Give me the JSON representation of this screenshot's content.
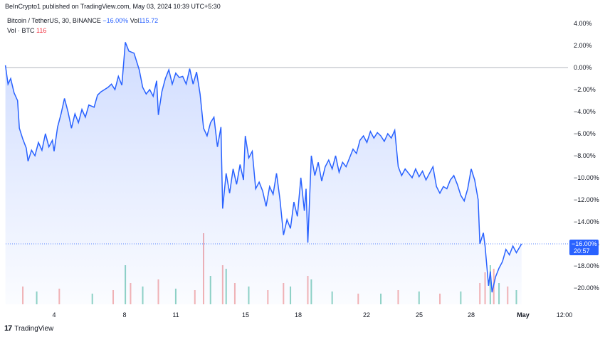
{
  "header": {
    "published": "BeInCrypto1 published on TradingView.com, May 03, 2024 10:39 UTC+5:30"
  },
  "legend": {
    "symbol": "Bitcoin / TetherUS, 30, BINANCE",
    "change": "−16.00%",
    "vol_label": "Vol",
    "vol_value": "115.72",
    "vol_series": "Vol · BTC",
    "vol_series_value": "116"
  },
  "brand": {
    "logo": "17",
    "name": "TradingView"
  },
  "price_badge": {
    "value": "−16.00%",
    "countdown": "20:57"
  },
  "colors": {
    "line": "#2962ff",
    "area_top": "rgba(41,98,255,0.22)",
    "area_bottom": "rgba(41,98,255,0.02)",
    "vol_up": "#8fd3c4",
    "vol_down": "#f5b3b3",
    "zero_line": "#b2b5be",
    "badge": "#2962ff"
  },
  "chart_data": {
    "type": "area",
    "ylim": [
      -22,
      4.8
    ],
    "y_unit": "%",
    "y_ticks": [
      "4.00%",
      "2.00%",
      "0.00%",
      "−2.00%",
      "−4.00%",
      "−6.00%",
      "−8.00%",
      "−10.00%",
      "−12.00%",
      "−14.00%",
      "−16.00%",
      "−18.00%",
      "−20.00%"
    ],
    "y_tick_values": [
      4,
      2,
      0,
      -2,
      -4,
      -6,
      -8,
      -10,
      -12,
      -14,
      -16,
      -18,
      -20
    ],
    "x_ticks": [
      "4",
      "8",
      "11",
      "15",
      "18",
      "22",
      "25",
      "28",
      "May",
      "12:00"
    ],
    "x_tick_days": [
      4,
      8,
      11,
      15,
      18,
      22,
      25,
      28,
      31,
      31.5
    ],
    "x_range_days": [
      1.2,
      31.6
    ],
    "series": [
      {
        "values": [
          [
            1.2,
            0.2
          ],
          [
            1.35,
            -1.5
          ],
          [
            1.5,
            -1.0
          ],
          [
            1.7,
            -2.3
          ],
          [
            1.9,
            -3.0
          ],
          [
            2.0,
            -5.5
          ],
          [
            2.2,
            -6.5
          ],
          [
            2.4,
            -7.3
          ],
          [
            2.5,
            -8.5
          ],
          [
            2.7,
            -7.5
          ],
          [
            2.9,
            -8.0
          ],
          [
            3.1,
            -6.8
          ],
          [
            3.3,
            -7.5
          ],
          [
            3.5,
            -6.0
          ],
          [
            3.7,
            -7.2
          ],
          [
            3.9,
            -6.6
          ],
          [
            4.0,
            -7.6
          ],
          [
            4.2,
            -5.4
          ],
          [
            4.4,
            -4.2
          ],
          [
            4.6,
            -2.8
          ],
          [
            4.8,
            -4.0
          ],
          [
            5.0,
            -5.5
          ],
          [
            5.2,
            -4.2
          ],
          [
            5.4,
            -5.0
          ],
          [
            5.6,
            -3.8
          ],
          [
            5.8,
            -4.5
          ],
          [
            6.0,
            -3.4
          ],
          [
            6.3,
            -3.6
          ],
          [
            6.5,
            -2.5
          ],
          [
            6.7,
            -2.2
          ],
          [
            6.9,
            -2.0
          ],
          [
            7.1,
            -1.8
          ],
          [
            7.3,
            -1.5
          ],
          [
            7.5,
            -2.0
          ],
          [
            7.7,
            -0.8
          ],
          [
            7.9,
            -1.6
          ],
          [
            8.1,
            2.3
          ],
          [
            8.3,
            1.5
          ],
          [
            8.6,
            1.3
          ],
          [
            8.9,
            -0.2
          ],
          [
            9.1,
            -1.8
          ],
          [
            9.3,
            -2.4
          ],
          [
            9.5,
            -2.0
          ],
          [
            9.7,
            -2.6
          ],
          [
            9.9,
            -1.2
          ],
          [
            10.0,
            -4.3
          ],
          [
            10.2,
            -2.2
          ],
          [
            10.4,
            -1.0
          ],
          [
            10.6,
            -0.2
          ],
          [
            10.8,
            -1.5
          ],
          [
            11.0,
            -0.5
          ],
          [
            11.2,
            -0.9
          ],
          [
            11.4,
            -0.8
          ],
          [
            11.6,
            -1.5
          ],
          [
            11.8,
            -0.1
          ],
          [
            12.0,
            -1.5
          ],
          [
            12.2,
            -0.4
          ],
          [
            12.4,
            -2.4
          ],
          [
            12.6,
            -5.5
          ],
          [
            12.8,
            -6.2
          ],
          [
            13.0,
            -5.0
          ],
          [
            13.2,
            -4.5
          ],
          [
            13.4,
            -7.2
          ],
          [
            13.6,
            -5.4
          ],
          [
            13.7,
            -12.8
          ],
          [
            13.9,
            -9.6
          ],
          [
            14.1,
            -11.4
          ],
          [
            14.3,
            -9.2
          ],
          [
            14.5,
            -10.6
          ],
          [
            14.7,
            -8.8
          ],
          [
            14.9,
            -10.2
          ],
          [
            15.0,
            -6.2
          ],
          [
            15.2,
            -8.2
          ],
          [
            15.4,
            -7.6
          ],
          [
            15.6,
            -11.0
          ],
          [
            15.8,
            -10.4
          ],
          [
            16.0,
            -11.2
          ],
          [
            16.2,
            -12.6
          ],
          [
            16.4,
            -10.8
          ],
          [
            16.6,
            -11.5
          ],
          [
            16.8,
            -9.6
          ],
          [
            17.0,
            -12.0
          ],
          [
            17.2,
            -15.2
          ],
          [
            17.4,
            -13.8
          ],
          [
            17.6,
            -14.6
          ],
          [
            17.8,
            -12.2
          ],
          [
            18.0,
            -13.5
          ],
          [
            18.2,
            -10.0
          ],
          [
            18.4,
            -13.0
          ],
          [
            18.5,
            -11.0
          ],
          [
            18.6,
            -15.9
          ],
          [
            18.8,
            -8.0
          ],
          [
            19.0,
            -9.8
          ],
          [
            19.2,
            -8.6
          ],
          [
            19.4,
            -10.3
          ],
          [
            19.6,
            -9.0
          ],
          [
            19.8,
            -8.4
          ],
          [
            20.0,
            -9.2
          ],
          [
            20.2,
            -8.0
          ],
          [
            20.4,
            -9.5
          ],
          [
            20.6,
            -8.6
          ],
          [
            20.8,
            -9.0
          ],
          [
            21.0,
            -8.2
          ],
          [
            21.2,
            -7.4
          ],
          [
            21.4,
            -7.8
          ],
          [
            21.6,
            -6.6
          ],
          [
            21.8,
            -6.2
          ],
          [
            22.0,
            -6.8
          ],
          [
            22.2,
            -5.8
          ],
          [
            22.4,
            -6.4
          ],
          [
            22.6,
            -5.9
          ],
          [
            22.8,
            -6.2
          ],
          [
            23.0,
            -6.7
          ],
          [
            23.2,
            -6.0
          ],
          [
            23.4,
            -6.4
          ],
          [
            23.6,
            -5.7
          ],
          [
            23.8,
            -9.0
          ],
          [
            24.0,
            -9.8
          ],
          [
            24.2,
            -9.2
          ],
          [
            24.4,
            -9.6
          ],
          [
            24.6,
            -10.0
          ],
          [
            24.8,
            -9.2
          ],
          [
            25.0,
            -9.9
          ],
          [
            25.2,
            -9.4
          ],
          [
            25.4,
            -10.2
          ],
          [
            25.6,
            -9.6
          ],
          [
            25.8,
            -9.0
          ],
          [
            26.0,
            -10.8
          ],
          [
            26.2,
            -11.4
          ],
          [
            26.4,
            -10.8
          ],
          [
            26.6,
            -11.0
          ],
          [
            26.8,
            -10.2
          ],
          [
            27.0,
            -9.8
          ],
          [
            27.2,
            -10.6
          ],
          [
            27.4,
            -11.6
          ],
          [
            27.6,
            -12.1
          ],
          [
            27.8,
            -11.0
          ],
          [
            28.0,
            -9.2
          ],
          [
            28.2,
            -10.2
          ],
          [
            28.4,
            -12.0
          ],
          [
            28.5,
            -16.0
          ],
          [
            28.7,
            -15.0
          ],
          [
            28.8,
            -16.2
          ],
          [
            29.0,
            -19.8
          ],
          [
            29.1,
            -18.5
          ],
          [
            29.2,
            -20.4
          ],
          [
            29.4,
            -19.0
          ],
          [
            29.6,
            -18.2
          ],
          [
            29.8,
            -17.6
          ],
          [
            30.0,
            -16.5
          ],
          [
            30.2,
            -17.0
          ],
          [
            30.4,
            -16.2
          ],
          [
            30.6,
            -16.8
          ],
          [
            30.9,
            -16.0
          ]
        ]
      }
    ],
    "volume": [
      {
        "d": 2.2,
        "v": 0.25,
        "up": false
      },
      {
        "d": 3.0,
        "v": 0.18,
        "up": true
      },
      {
        "d": 4.3,
        "v": 0.22,
        "up": false
      },
      {
        "d": 6.2,
        "v": 0.15,
        "up": true
      },
      {
        "d": 7.4,
        "v": 0.2,
        "up": false
      },
      {
        "d": 8.1,
        "v": 0.55,
        "up": true
      },
      {
        "d": 8.4,
        "v": 0.3,
        "up": false
      },
      {
        "d": 9.1,
        "v": 0.25,
        "up": true
      },
      {
        "d": 10.0,
        "v": 0.35,
        "up": false
      },
      {
        "d": 11.0,
        "v": 0.22,
        "up": true
      },
      {
        "d": 12.1,
        "v": 0.2,
        "up": false
      },
      {
        "d": 12.6,
        "v": 1.0,
        "up": false
      },
      {
        "d": 13.0,
        "v": 0.4,
        "up": true
      },
      {
        "d": 13.7,
        "v": 0.55,
        "up": false
      },
      {
        "d": 13.9,
        "v": 0.5,
        "up": true
      },
      {
        "d": 14.4,
        "v": 0.3,
        "up": false
      },
      {
        "d": 15.2,
        "v": 0.25,
        "up": true
      },
      {
        "d": 16.3,
        "v": 0.2,
        "up": false
      },
      {
        "d": 17.2,
        "v": 0.3,
        "up": false
      },
      {
        "d": 17.6,
        "v": 0.25,
        "up": true
      },
      {
        "d": 18.6,
        "v": 0.4,
        "up": false
      },
      {
        "d": 18.8,
        "v": 0.35,
        "up": true
      },
      {
        "d": 20.0,
        "v": 0.18,
        "up": true
      },
      {
        "d": 21.5,
        "v": 0.15,
        "up": false
      },
      {
        "d": 22.8,
        "v": 0.15,
        "up": true
      },
      {
        "d": 23.8,
        "v": 0.2,
        "up": false
      },
      {
        "d": 25.0,
        "v": 0.18,
        "up": true
      },
      {
        "d": 26.2,
        "v": 0.15,
        "up": false
      },
      {
        "d": 27.4,
        "v": 0.18,
        "up": true
      },
      {
        "d": 28.5,
        "v": 0.3,
        "up": false
      },
      {
        "d": 28.8,
        "v": 0.45,
        "up": false
      },
      {
        "d": 29.1,
        "v": 0.55,
        "up": true
      },
      {
        "d": 29.3,
        "v": 0.5,
        "up": false
      },
      {
        "d": 29.6,
        "v": 0.3,
        "up": true
      },
      {
        "d": 30.1,
        "v": 0.25,
        "up": false
      },
      {
        "d": 30.6,
        "v": 0.2,
        "up": true
      }
    ]
  }
}
